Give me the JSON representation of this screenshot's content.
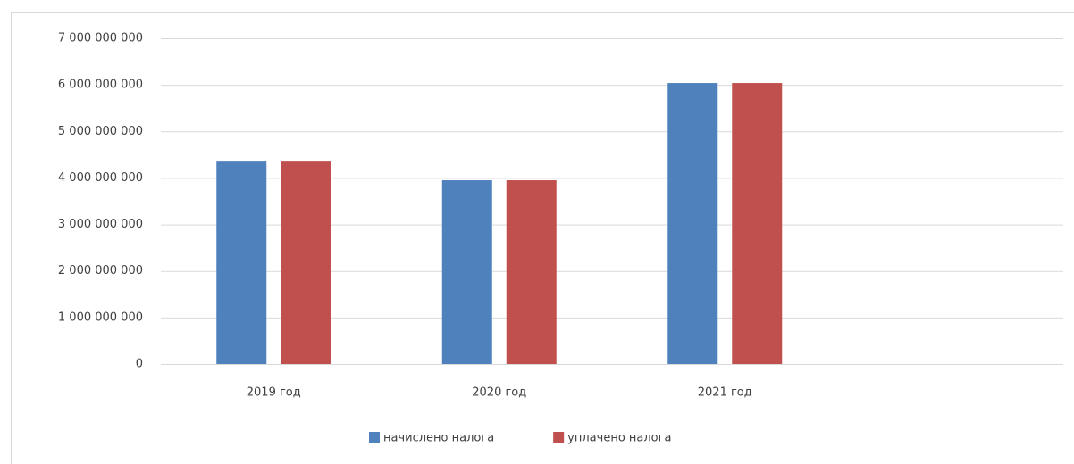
{
  "chart_data": {
    "type": "bar",
    "categories": [
      "2019 год",
      "2020 год",
      "2021 год",
      null
    ],
    "series": [
      {
        "name": "начислено налога",
        "color": "#4f81bd",
        "values": [
          4370000000,
          3950000000,
          6040000000,
          null
        ]
      },
      {
        "name": "уплачено налога",
        "color": "#c0504d",
        "values": [
          4370000000,
          3950000000,
          6040000000,
          null
        ]
      }
    ],
    "ylim": [
      0,
      7000000000
    ],
    "yticks": [
      0,
      {
        "value": 1000000000,
        "label": "1 000 000 000"
      },
      {
        "value": 2000000000,
        "label": "2 000 000 000"
      },
      {
        "value": 3000000000,
        "label": "3 000 000 000"
      },
      {
        "value": 4000000000,
        "label": "4 000 000 000"
      },
      {
        "value": 5000000000,
        "label": "5 000 000 000"
      },
      {
        "value": 6000000000,
        "label": "6 000 000 000"
      },
      {
        "value": 7000000000,
        "label": "7 000 000 000"
      }
    ],
    "grid": true,
    "legend": "bottom"
  }
}
